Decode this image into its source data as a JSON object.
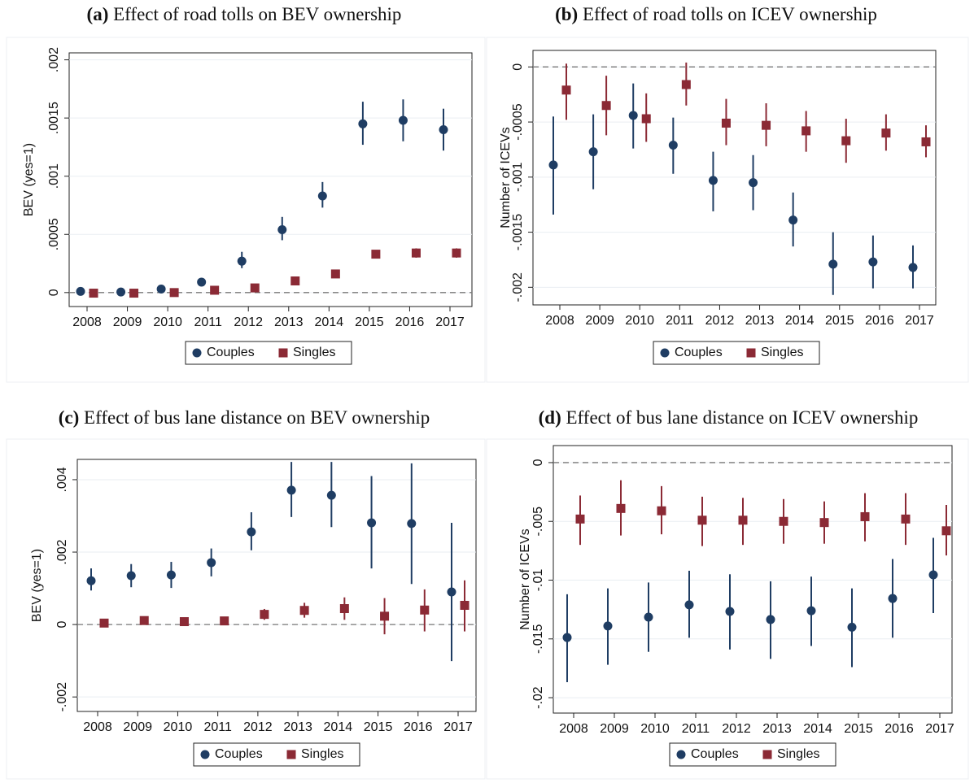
{
  "chart_data": [
    {
      "type": "errorbar",
      "label": "(a)",
      "title": "Effect of road tolls on BEV ownership",
      "y_label": "BEV (yes=1)",
      "categories": [
        "2008",
        "2009",
        "2010",
        "2011",
        "2012",
        "2013",
        "2014",
        "2015",
        "2016",
        "2017"
      ],
      "ylim": [
        -0.00012,
        0.00206
      ],
      "yticks": [
        0,
        {
          "value": 0.0005,
          "label": ".0005"
        },
        {
          "value": 0.001,
          "label": ".001"
        },
        {
          "value": 0.0015,
          "label": ".0015"
        },
        {
          "value": 0.002,
          "label": ".002"
        }
      ],
      "grid": true,
      "legend": "bottom",
      "series": [
        {
          "name": "Couples",
          "color": "#1f3d63",
          "marker": "circle",
          "values": [
            1e-05,
            5e-06,
            3e-05,
            9e-05,
            0.00027,
            0.00054,
            0.00083,
            0.00145,
            0.00148,
            0.0014
          ],
          "lower": [
            2e-06,
            -3e-06,
            2e-05,
            7e-05,
            0.00021,
            0.00045,
            0.00073,
            0.00127,
            0.0013,
            0.00122
          ],
          "upper": [
            1.8e-05,
            1.3e-05,
            4e-05,
            0.00011,
            0.00035,
            0.00065,
            0.00095,
            0.00164,
            0.00166,
            0.00158
          ]
        },
        {
          "name": "Singles",
          "color": "#8b2a35",
          "marker": "square",
          "values": [
            -5e-06,
            -5e-06,
            0,
            2e-05,
            4e-05,
            0.0001,
            0.00016,
            0.00033,
            0.00034,
            0.00034
          ],
          "lower": [
            -1.2e-05,
            -1.2e-05,
            -8e-06,
            1e-05,
            3e-05,
            8e-05,
            0.00014,
            0.0003,
            0.0003,
            0.0003
          ],
          "upper": [
            2e-06,
            2e-06,
            8e-06,
            3e-05,
            5e-05,
            0.00012,
            0.00018,
            0.00036,
            0.00038,
            0.00038
          ]
        }
      ]
    },
    {
      "type": "errorbar",
      "label": "(b)",
      "title": "Effect of road tolls on ICEV ownership",
      "y_label": "Number of ICEVs",
      "categories": [
        "2008",
        "2009",
        "2010",
        "2011",
        "2012",
        "2013",
        "2014",
        "2015",
        "2016",
        "2017"
      ],
      "ylim": [
        -0.00216,
        0.00015
      ],
      "yticks": [
        0,
        {
          "value": -0.0005,
          "label": "-.0005"
        },
        {
          "value": -0.001,
          "label": "-.001"
        },
        {
          "value": -0.0015,
          "label": "-.0015"
        },
        {
          "value": -0.002,
          "label": "-.002"
        }
      ],
      "grid": true,
      "legend": "bottom",
      "series": [
        {
          "name": "Couples",
          "color": "#1f3d63",
          "marker": "circle",
          "values": [
            -0.00089,
            -0.00077,
            -0.00044,
            -0.00071,
            -0.00103,
            -0.00105,
            -0.00139,
            -0.00179,
            -0.00177,
            -0.00182
          ],
          "lower": [
            -0.00134,
            -0.00111,
            -0.00074,
            -0.00097,
            -0.00131,
            -0.0013,
            -0.00163,
            -0.00207,
            -0.00201,
            -0.00201
          ],
          "upper": [
            -0.00045,
            -0.00043,
            -0.00015,
            -0.00046,
            -0.00077,
            -0.0008,
            -0.00114,
            -0.0015,
            -0.00153,
            -0.00162
          ]
        },
        {
          "name": "Singles",
          "color": "#8b2a35",
          "marker": "square",
          "values": [
            -0.00021,
            -0.00035,
            -0.00047,
            -0.00016,
            -0.00051,
            -0.00053,
            -0.00058,
            -0.00067,
            -0.0006,
            -0.00068
          ],
          "lower": [
            -0.00048,
            -0.00062,
            -0.00068,
            -0.00035,
            -0.00071,
            -0.00072,
            -0.00077,
            -0.00087,
            -0.00076,
            -0.00082
          ],
          "upper": [
            3e-05,
            -8e-05,
            -0.00024,
            4e-05,
            -0.00029,
            -0.00033,
            -0.0004,
            -0.00047,
            -0.00043,
            -0.00053
          ]
        }
      ]
    },
    {
      "type": "errorbar",
      "label": "(c)",
      "title": "Effect of bus lane distance on BEV ownership",
      "y_label": "BEV (yes=1)",
      "categories": [
        "2008",
        "2009",
        "2010",
        "2011",
        "2012",
        "2013",
        "2014",
        "2015",
        "2016",
        "2017"
      ],
      "ylim": [
        -0.0024,
        0.00456
      ],
      "yticks": [
        {
          "value": -0.002,
          "label": "-.002"
        },
        0,
        {
          "value": 0.002,
          "label": ".002"
        },
        {
          "value": 0.004,
          "label": ".004"
        }
      ],
      "grid": true,
      "legend": "bottom",
      "series": [
        {
          "name": "Couples",
          "color": "#1f3d63",
          "marker": "circle",
          "values": [
            0.00121,
            0.00135,
            0.00137,
            0.00171,
            0.00256,
            0.00371,
            0.00357,
            0.00281,
            0.00279,
            0.0009
          ],
          "lower": [
            0.00094,
            0.00103,
            0.00101,
            0.00133,
            0.00205,
            0.00297,
            0.00269,
            0.00155,
            0.00112,
            -0.00101
          ],
          "upper": [
            0.00155,
            0.00167,
            0.00173,
            0.0021,
            0.0031,
            0.00449,
            0.00449,
            0.0041,
            0.00445,
            0.00281
          ]
        },
        {
          "name": "Singles",
          "color": "#8b2a35",
          "marker": "square",
          "values": [
            4e-05,
            0.00011,
            8e-05,
            0.0001,
            0.00028,
            0.00039,
            0.00044,
            0.00023,
            0.0004,
            0.00053
          ],
          "lower": [
            1e-05,
            6e-05,
            3e-05,
            5e-05,
            0.00013,
            0.00019,
            0.00013,
            -0.00027,
            -0.00019,
            -0.00019
          ],
          "upper": [
            7e-05,
            0.00016,
            0.00013,
            0.00015,
            0.00043,
            0.0006,
            0.00075,
            0.00073,
            0.00097,
            0.00122
          ]
        }
      ]
    },
    {
      "type": "errorbar",
      "label": "(d)",
      "title": "Effect of bus lane distance on ICEV ownership",
      "y_label": "Number of ICEVs",
      "categories": [
        "2008",
        "2009",
        "2010",
        "2011",
        "2012",
        "2013",
        "2014",
        "2015",
        "2016",
        "2017"
      ],
      "ylim": [
        -0.02131,
        0.00145
      ],
      "yticks": [
        0,
        {
          "value": -0.005,
          "label": "-.005"
        },
        {
          "value": -0.01,
          "label": "-.01"
        },
        {
          "value": -0.015,
          "label": "-.015"
        },
        {
          "value": -0.02,
          "label": "-.02"
        }
      ],
      "grid": true,
      "legend": "bottom",
      "series": [
        {
          "name": "Couples",
          "color": "#1f3d63",
          "marker": "circle",
          "values": [
            -0.01488,
            -0.0139,
            -0.01315,
            -0.0121,
            -0.01266,
            -0.01335,
            -0.0126,
            -0.014,
            -0.01156,
            -0.00955
          ],
          "lower": [
            -0.01868,
            -0.0172,
            -0.0161,
            -0.0149,
            -0.0159,
            -0.0167,
            -0.0156,
            -0.0174,
            -0.0149,
            -0.0128
          ],
          "upper": [
            -0.0112,
            -0.0107,
            -0.0102,
            -0.0092,
            -0.0095,
            -0.0101,
            -0.0097,
            -0.0107,
            -0.0082,
            -0.0064
          ]
        },
        {
          "name": "Singles",
          "color": "#8b2a35",
          "marker": "square",
          "values": [
            -0.0048,
            -0.0039,
            -0.0041,
            -0.0049,
            -0.0049,
            -0.005,
            -0.0051,
            -0.0046,
            -0.0048,
            -0.0058
          ],
          "lower": [
            -0.007,
            -0.0062,
            -0.0061,
            -0.0071,
            -0.007,
            -0.0069,
            -0.0069,
            -0.0067,
            -0.007,
            -0.0079
          ],
          "upper": [
            -0.0028,
            -0.0015,
            -0.002,
            -0.0029,
            -0.003,
            -0.0031,
            -0.0033,
            -0.0026,
            -0.0026,
            -0.0036
          ]
        }
      ]
    }
  ]
}
